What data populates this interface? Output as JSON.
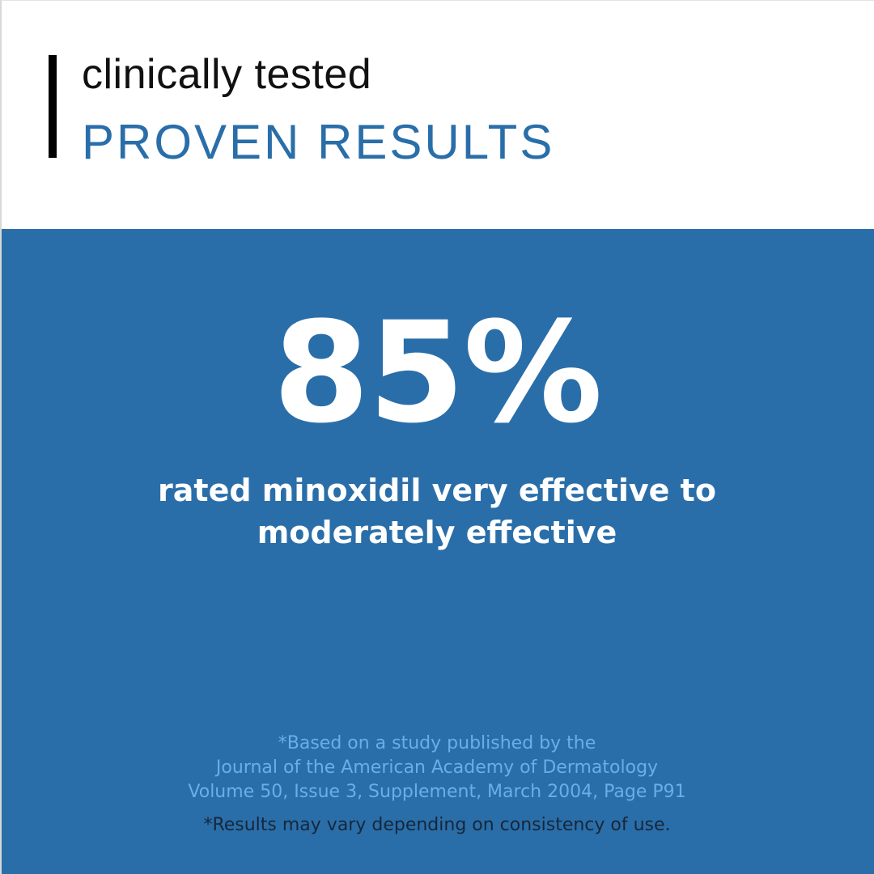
{
  "header": {
    "kicker": "clinically tested",
    "title": "PROVEN RESULTS"
  },
  "main": {
    "stat": "85%",
    "description_lines": [
      "rated minoxidil very effective to",
      "moderately effective"
    ],
    "source_lines": [
      "*Based on a study published by the",
      "Journal of the American Academy of Dermatology",
      "Volume 50, Issue 3, Supplement, March 2004, Page P91"
    ],
    "disclaimer": "*Results may vary depending on consistency of use."
  },
  "colors": {
    "brand_blue": "#2a6ea9",
    "source_text": "#6aaee8",
    "accent_bar": "#000000"
  }
}
